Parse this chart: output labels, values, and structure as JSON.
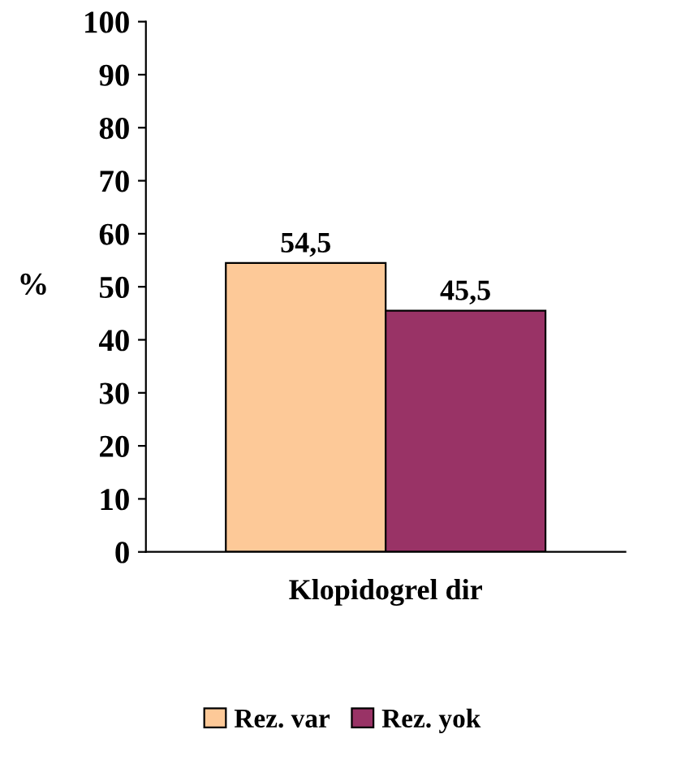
{
  "chart_data": {
    "type": "bar",
    "categories": [
      "Klopidogrel dir"
    ],
    "ylabel": "%",
    "series": [
      {
        "name": "Rez. var",
        "color": "#fdc998",
        "values": [
          54.5
        ],
        "value_labels": [
          "54,5"
        ]
      },
      {
        "name": "Rez. yok",
        "color": "#993366",
        "values": [
          45.5
        ],
        "value_labels": [
          "45,5"
        ]
      }
    ],
    "ylim": [
      0,
      100
    ],
    "yticks": [
      0,
      10,
      20,
      30,
      40,
      50,
      60,
      70,
      80,
      90,
      100
    ],
    "legend": "bottom",
    "grid": false
  }
}
